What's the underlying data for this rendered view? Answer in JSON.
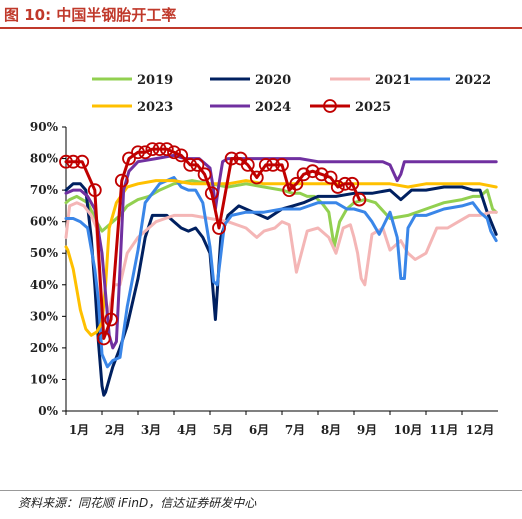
{
  "header": {
    "title": "图 10:  中国半钢胎开工率"
  },
  "footer": {
    "source": "资料来源：同花顺 iFinD，信达证券研发中心"
  },
  "chart_data": {
    "type": "line",
    "title": "中国半钢胎开工率",
    "xlabel": "",
    "ylabel": "",
    "ylim": [
      0,
      90
    ],
    "yticks": [
      "0%",
      "10%",
      "20%",
      "30%",
      "40%",
      "50%",
      "60%",
      "70%",
      "80%",
      "90%"
    ],
    "xlim": [
      1,
      13
    ],
    "xticks": [
      "1月",
      "2月",
      "3月",
      "4月",
      "5月",
      "6月",
      "7月",
      "8月",
      "9月",
      "10月",
      "11月",
      "12月"
    ],
    "legend_position": "top",
    "series": [
      {
        "name": "2019",
        "color": "#92d050",
        "marker": "none",
        "x": [
          1.0,
          1.1,
          1.3,
          1.6,
          1.85,
          2.0,
          2.1,
          2.3,
          2.5,
          2.7,
          3.0,
          3.3,
          3.6,
          4.0,
          4.5,
          5.0,
          5.5,
          6.0,
          6.5,
          7.0,
          7.3,
          7.5,
          7.7,
          7.9,
          8.1,
          8.3,
          8.45,
          8.6,
          8.8,
          9.0,
          9.3,
          9.6,
          10.0,
          10.5,
          11.0,
          11.5,
          12.0,
          12.3,
          12.5,
          12.7,
          12.85,
          12.95
        ],
        "y": [
          66,
          67,
          68,
          66,
          60,
          57,
          58,
          60,
          62,
          65,
          67,
          68,
          70,
          72,
          73,
          72,
          71,
          72,
          71,
          70,
          69,
          69,
          68,
          68,
          66,
          63,
          52,
          60,
          64,
          66,
          67,
          66,
          61,
          62,
          64,
          66,
          67,
          68,
          68,
          70,
          64,
          63
        ]
      },
      {
        "name": "2020",
        "color": "#002060",
        "marker": "none",
        "x": [
          1.0,
          1.2,
          1.4,
          1.55,
          1.7,
          1.8,
          1.9,
          2.0,
          2.05,
          2.1,
          2.2,
          2.3,
          2.5,
          2.7,
          3.0,
          3.2,
          3.4,
          3.6,
          3.8,
          4.0,
          4.2,
          4.4,
          4.6,
          4.8,
          5.0,
          5.15,
          5.3,
          5.5,
          5.8,
          6.2,
          6.6,
          7.0,
          7.3,
          7.6,
          8.0,
          8.5,
          9.0,
          9.5,
          10.0,
          10.3,
          10.6,
          11.0,
          11.5,
          12.0,
          12.3,
          12.5,
          12.7,
          12.95
        ],
        "y": [
          70,
          72,
          72,
          70,
          55,
          40,
          22,
          8,
          5,
          6,
          10,
          14,
          20,
          27,
          42,
          55,
          62,
          62,
          62,
          60,
          58,
          57,
          58,
          55,
          50,
          29,
          55,
          62,
          65,
          63,
          61,
          64,
          65,
          66,
          68,
          68,
          69,
          69,
          70,
          67,
          70,
          70,
          71,
          71,
          70,
          70,
          63,
          56
        ]
      },
      {
        "name": "2021",
        "color": "#f4b6b6",
        "marker": "none",
        "x": [
          1.0,
          1.1,
          1.3,
          1.5,
          1.7,
          1.85,
          2.0,
          2.2,
          2.35,
          2.5,
          2.7,
          3.0,
          3.5,
          4.0,
          4.5,
          5.0,
          5.5,
          6.0,
          6.3,
          6.5,
          6.8,
          7.0,
          7.2,
          7.4,
          7.7,
          8.0,
          8.3,
          8.5,
          8.7,
          8.9,
          9.0,
          9.1,
          9.2,
          9.3,
          9.5,
          9.8,
          10.0,
          10.3,
          10.5,
          10.7,
          11.0,
          11.3,
          11.6,
          11.9,
          12.2,
          12.5,
          12.8,
          12.95
        ],
        "y": [
          55,
          65,
          66,
          65,
          62,
          58,
          28,
          32,
          40,
          40,
          50,
          55,
          60,
          62,
          62,
          61,
          60,
          58,
          55,
          57,
          58,
          60,
          59,
          44,
          57,
          58,
          55,
          50,
          58,
          59,
          55,
          50,
          42,
          40,
          56,
          58,
          51,
          54,
          50,
          48,
          50,
          58,
          58,
          60,
          62,
          62,
          63,
          63
        ]
      },
      {
        "name": "2022",
        "color": "#3a86e8",
        "marker": "none",
        "x": [
          1.0,
          1.2,
          1.4,
          1.6,
          1.8,
          1.9,
          2.0,
          2.15,
          2.3,
          2.5,
          2.7,
          3.0,
          3.2,
          3.4,
          3.6,
          3.8,
          4.0,
          4.2,
          4.4,
          4.6,
          4.8,
          5.0,
          5.1,
          5.2,
          5.4,
          5.6,
          6.0,
          6.5,
          7.0,
          7.5,
          8.0,
          8.5,
          8.8,
          9.0,
          9.3,
          9.5,
          9.7,
          10.0,
          10.2,
          10.3,
          10.4,
          10.5,
          10.7,
          11.0,
          11.5,
          12.0,
          12.3,
          12.5,
          12.7,
          12.8,
          12.95
        ],
        "y": [
          61,
          61,
          60,
          58,
          45,
          35,
          18,
          14,
          16,
          17,
          33,
          51,
          66,
          69,
          72,
          73,
          74,
          71,
          70,
          70,
          66,
          52,
          41,
          40,
          59,
          62,
          63,
          63,
          64,
          64,
          66,
          66,
          64,
          64,
          63,
          60,
          56,
          63,
          55,
          42,
          42,
          58,
          62,
          62,
          64,
          65,
          66,
          63,
          61,
          57,
          54
        ]
      },
      {
        "name": "2023",
        "color": "#ffc000",
        "marker": "none",
        "x": [
          1.0,
          1.05,
          1.2,
          1.4,
          1.55,
          1.7,
          1.85,
          2.0,
          2.1,
          2.2,
          2.4,
          2.7,
          3.0,
          3.5,
          4.0,
          4.5,
          5.0,
          5.5,
          6.0,
          6.5,
          7.0,
          7.5,
          8.0,
          8.5,
          9.0,
          9.5,
          10.0,
          10.5,
          11.0,
          11.5,
          12.0,
          12.5,
          12.95
        ],
        "y": [
          52,
          51,
          45,
          32,
          26,
          24,
          25,
          28,
          40,
          58,
          66,
          71,
          72,
          73,
          73,
          72,
          72,
          72,
          73,
          72,
          72,
          72,
          72,
          72,
          72,
          72,
          72,
          71,
          72,
          72,
          72,
          72,
          71
        ]
      },
      {
        "name": "2024",
        "color": "#7030a0",
        "marker": "none",
        "x": [
          1.0,
          1.2,
          1.4,
          1.6,
          1.8,
          2.0,
          2.1,
          2.2,
          2.3,
          2.4,
          2.5,
          2.6,
          2.75,
          3.0,
          3.5,
          4.0,
          4.3,
          4.5,
          4.7,
          4.9,
          5.0,
          5.1,
          5.15,
          5.25,
          5.35,
          5.5,
          6.0,
          6.5,
          7.0,
          7.5,
          8.0,
          8.5,
          9.0,
          9.5,
          9.8,
          10.0,
          10.2,
          10.3,
          10.4,
          10.5,
          10.8,
          11.0,
          11.5,
          12.0,
          12.5,
          12.95
        ],
        "y": [
          69,
          70,
          70,
          68,
          64,
          50,
          37,
          24,
          20,
          22,
          45,
          70,
          76,
          79,
          80,
          81,
          80,
          80,
          80,
          78,
          77,
          70,
          64,
          72,
          79,
          80,
          80,
          80,
          80,
          80,
          79,
          79,
          79,
          79,
          79,
          78,
          73,
          75,
          79,
          79,
          79,
          79,
          79,
          79,
          79,
          79
        ]
      },
      {
        "name": "2025",
        "color": "#c00000",
        "marker": "open-circle",
        "x": [
          1.0,
          1.2,
          1.45,
          1.8,
          2.05,
          2.25,
          2.55,
          2.75,
          3.0,
          3.2,
          3.4,
          3.6,
          3.8,
          4.0,
          4.2,
          4.45,
          4.65,
          4.85,
          5.05,
          5.25,
          5.6,
          5.85,
          6.05,
          6.3,
          6.55,
          6.75,
          7.0,
          7.2,
          7.4,
          7.6,
          7.85,
          8.1,
          8.35,
          8.55,
          8.75,
          8.95,
          9.15
        ],
        "y": [
          79,
          79,
          79,
          70,
          23,
          29,
          73,
          80,
          82,
          82,
          83,
          83,
          83,
          82,
          81,
          78,
          78,
          75,
          69,
          58,
          80,
          80,
          78,
          74,
          78,
          78,
          78,
          70,
          72,
          75,
          76,
          75,
          74,
          71,
          72,
          72,
          67
        ]
      }
    ]
  }
}
